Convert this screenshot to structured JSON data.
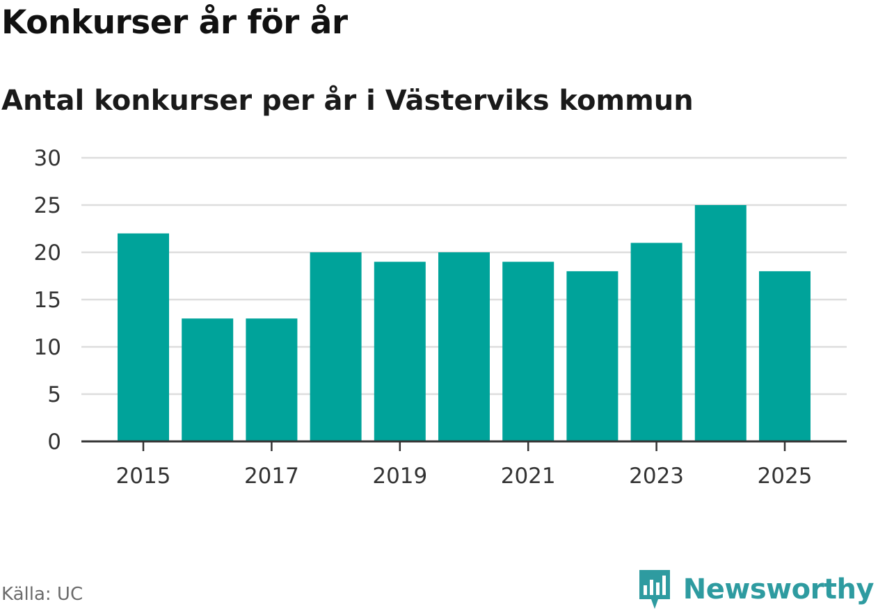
{
  "title": "Konkurser år för år",
  "subtitle": "Antal konkurser per år i Västerviks kommun",
  "source": "Källa: UC",
  "brand": {
    "name": "Newsworthy",
    "icon": "newsworthy-logo-icon",
    "color": "#2e9ba0"
  },
  "colors": {
    "bar": "#00a39a",
    "grid": "#dddddd",
    "axis": "#333333"
  },
  "chart_data": {
    "type": "bar",
    "categories": [
      "2015",
      "2016",
      "2017",
      "2018",
      "2019",
      "2020",
      "2021",
      "2022",
      "2023",
      "2024",
      "2025"
    ],
    "series": [
      {
        "values": [
          22,
          13,
          13,
          20,
          19,
          20,
          19,
          18,
          21,
          25,
          18
        ]
      }
    ],
    "x_tick_labels": [
      "2015",
      "2017",
      "2019",
      "2021",
      "2023",
      "2025"
    ],
    "y_ticks": [
      0,
      5,
      10,
      15,
      20,
      25,
      30
    ],
    "ylim": [
      0,
      30
    ],
    "grid": true,
    "legend": "none"
  }
}
